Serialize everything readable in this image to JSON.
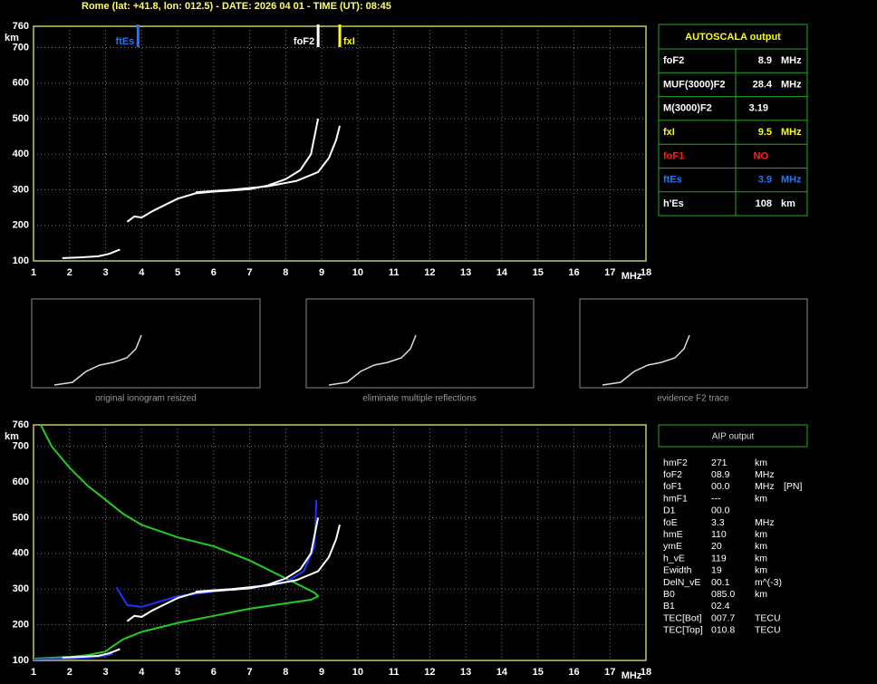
{
  "header": {
    "title": "Rome (lat: +41.8, lon: 012.5) - DATE: 2026 04 01 - TIME (UT): 08:45"
  },
  "chart_data": [
    {
      "type": "line",
      "y_label": "km",
      "x_label": "MHz",
      "xlim": [
        1,
        18
      ],
      "ylim": [
        100,
        760
      ],
      "xticks": [
        1,
        2,
        3,
        4,
        5,
        6,
        7,
        8,
        9,
        10,
        11,
        12,
        13,
        14,
        15,
        16,
        17,
        18
      ],
      "yticks": [
        100,
        200,
        300,
        400,
        500,
        600,
        700,
        760
      ],
      "grid": true,
      "markers": [
        {
          "label": "ftEs",
          "value": 3.9,
          "color": "#1e78ff",
          "side": "left"
        },
        {
          "label": "foF2",
          "value": 8.9,
          "color": "#ffffff",
          "side": "left"
        },
        {
          "label": "fxI",
          "value": 9.5,
          "color": "#ffff00",
          "side": "right"
        }
      ],
      "series": [
        {
          "color": "#ffffff",
          "x": [
            1.8,
            2.3,
            2.8,
            3.1,
            3.4
          ],
          "values": [
            108,
            110,
            113,
            120,
            132
          ]
        },
        {
          "color": "#ffffff",
          "x": [
            3.6,
            3.8,
            4.0,
            4.3,
            4.7,
            5.0,
            5.5,
            6.0,
            6.5,
            7.0,
            7.5,
            8.0,
            8.4,
            8.7,
            8.9
          ],
          "values": [
            210,
            225,
            222,
            240,
            260,
            275,
            290,
            295,
            298,
            302,
            312,
            330,
            355,
            400,
            500
          ]
        },
        {
          "color": "#ffffff",
          "x": [
            5.5,
            6.5,
            7.5,
            8.3,
            8.9,
            9.2,
            9.4,
            9.5
          ],
          "values": [
            293,
            300,
            310,
            325,
            350,
            390,
            440,
            480
          ]
        }
      ]
    },
    {
      "type": "line",
      "y_label": "km",
      "x_label": "MHz",
      "xlim": [
        1,
        18
      ],
      "ylim": [
        100,
        760
      ],
      "xticks": [
        1,
        2,
        3,
        4,
        5,
        6,
        7,
        8,
        9,
        10,
        11,
        12,
        13,
        14,
        15,
        16,
        17,
        18
      ],
      "yticks": [
        100,
        200,
        300,
        400,
        500,
        600,
        700,
        760
      ],
      "grid": true,
      "markers": [],
      "series": [
        {
          "color": "#22cc22",
          "x": [
            1.2,
            1.5,
            2,
            2.5,
            3,
            3.5,
            4,
            5,
            6,
            7,
            8,
            8.5,
            8.8,
            8.9,
            8.7,
            8,
            7,
            6,
            5,
            4,
            3.5,
            3.2,
            3,
            2.5,
            2,
            1
          ],
          "values": [
            760,
            700,
            640,
            590,
            550,
            510,
            480,
            445,
            420,
            380,
            330,
            305,
            290,
            280,
            270,
            260,
            245,
            225,
            205,
            180,
            160,
            140,
            125,
            115,
            110,
            105
          ]
        },
        {
          "color": "#2233ff",
          "x": [
            1,
            2,
            2.8,
            3.2
          ],
          "values": [
            103,
            105,
            110,
            118
          ]
        },
        {
          "color": "#2233ff",
          "x": [
            3.3,
            3.6,
            4,
            5,
            6,
            7,
            8,
            8.5,
            8.8,
            8.85
          ],
          "values": [
            305,
            255,
            250,
            280,
            293,
            305,
            320,
            350,
            420,
            550
          ]
        },
        {
          "color": "#ffffff",
          "x": [
            1.8,
            2.3,
            2.8,
            3.1,
            3.4
          ],
          "values": [
            108,
            110,
            113,
            120,
            132
          ]
        },
        {
          "color": "#ffffff",
          "x": [
            3.6,
            3.8,
            4.0,
            4.3,
            4.7,
            5.0,
            5.5,
            6.0,
            6.5,
            7.0,
            7.5,
            8.0,
            8.4,
            8.7,
            8.9
          ],
          "values": [
            210,
            225,
            222,
            240,
            260,
            275,
            290,
            295,
            298,
            302,
            312,
            330,
            355,
            400,
            500
          ]
        },
        {
          "color": "#ffffff",
          "x": [
            5.5,
            6.5,
            7.5,
            8.3,
            8.9,
            9.2,
            9.4,
            9.5
          ],
          "values": [
            293,
            300,
            310,
            325,
            350,
            390,
            440,
            480
          ]
        }
      ]
    }
  ],
  "autoscala": {
    "title": "AUTOSCALA output",
    "rows": [
      {
        "name": "foF2",
        "value": "8.9",
        "unit": "MHz",
        "color": "#ffffff"
      },
      {
        "name": "MUF(3000)F2",
        "value": "28.4",
        "unit": "MHz",
        "color": "#ffffff"
      },
      {
        "name": "M(3000)F2",
        "value": "3.19",
        "color": "#ffffff"
      },
      {
        "name": "fxI",
        "value": "9.5",
        "unit": "MHz",
        "color": "#ffff00"
      },
      {
        "name": "foF1",
        "value": "NO",
        "color": "#ff2020"
      },
      {
        "name": "ftEs",
        "value": "3.9",
        "unit": "MHz",
        "color": "#1e78ff"
      },
      {
        "name": "h'Es",
        "value": "108",
        "unit": "km",
        "color": "#ffffff"
      }
    ]
  },
  "thumbnails": [
    {
      "caption": "original ionogram resized"
    },
    {
      "caption": "eliminate multiple reflections"
    },
    {
      "caption": "evidence F2 trace"
    }
  ],
  "aip": {
    "title": "AIP output",
    "rows": [
      [
        "hmF2",
        "271",
        "km"
      ],
      [
        "foF2",
        "08.9",
        "MHz"
      ],
      [
        "foF1",
        "00.0",
        "MHz",
        "[PN]"
      ],
      [
        "hmF1",
        "---",
        "km"
      ],
      [
        "D1",
        "00.0"
      ],
      [
        "foE",
        "3.3",
        "MHz"
      ],
      [
        "hmE",
        "110",
        "km"
      ],
      [
        "ymE",
        "20",
        "km"
      ],
      [
        "h_vE",
        "119",
        "km"
      ],
      [
        "Ewidth",
        "19",
        "km"
      ],
      [
        "DelN_vE",
        "00.1",
        "m^(-3)"
      ],
      [
        "B0",
        "085.0",
        "km"
      ],
      [
        "B1",
        "02.4"
      ],
      [
        "TEC[Bot]",
        "007.7",
        "TECU"
      ],
      [
        "TEC[Top]",
        "010.8",
        "TECU"
      ]
    ]
  }
}
